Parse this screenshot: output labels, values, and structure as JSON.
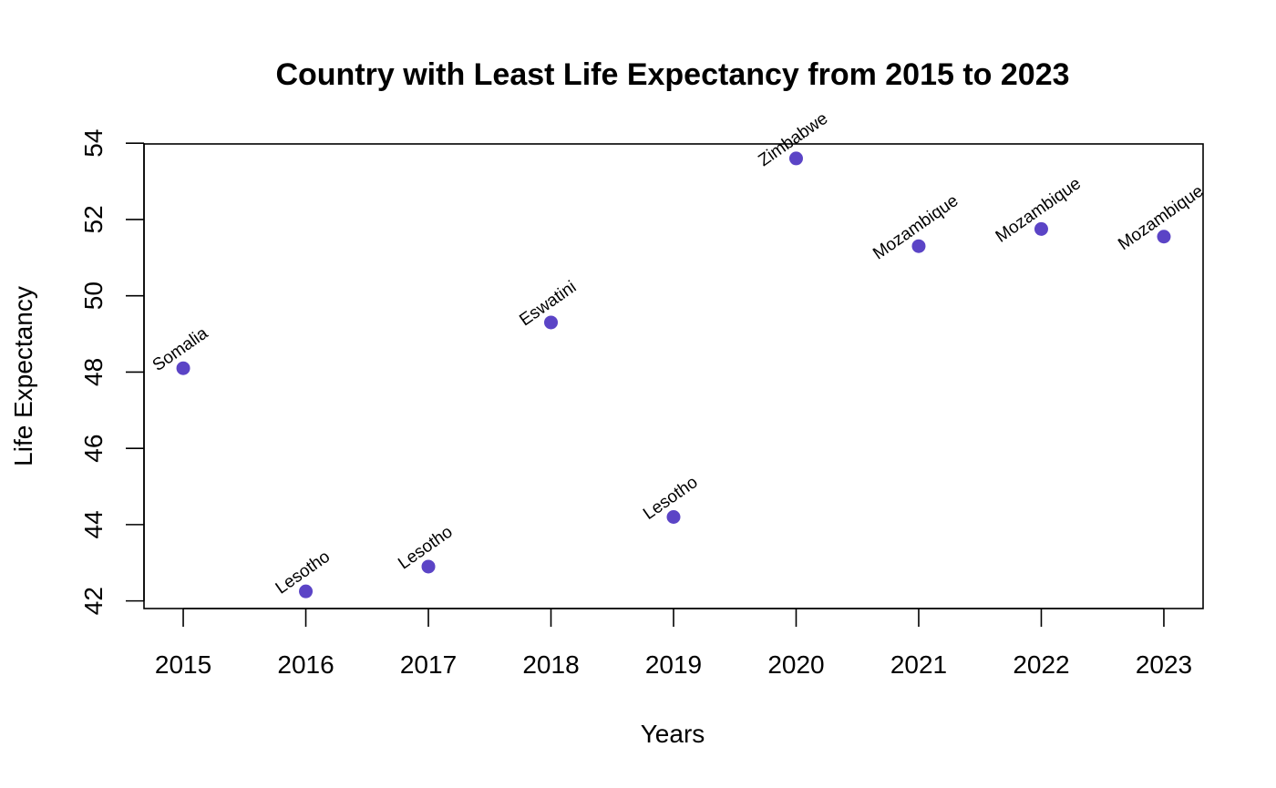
{
  "chart_data": {
    "type": "scatter",
    "title": "Country with Least Life Expectancy from 2015 to 2023",
    "xlabel": "Years",
    "ylabel": "Life Expectancy",
    "x": [
      2015,
      2016,
      2017,
      2018,
      2019,
      2020,
      2021,
      2022,
      2023
    ],
    "y": [
      48.1,
      42.25,
      42.9,
      49.3,
      44.2,
      53.6,
      51.3,
      51.75,
      51.55
    ],
    "point_labels": [
      "Somalia",
      "Lesotho",
      "Lesotho",
      "Eswatini",
      "Lesotho",
      "Zimbabwe",
      "Mozambique",
      "Mozambique",
      "Mozambique"
    ],
    "xticks": [
      "2015",
      "2016",
      "2017",
      "2018",
      "2019",
      "2020",
      "2021",
      "2022",
      "2023"
    ],
    "yticks": [
      "42",
      "44",
      "46",
      "48",
      "50",
      "52",
      "54"
    ],
    "xlim": [
      2014.68,
      2023.32
    ],
    "ylim": [
      41.8,
      53.98
    ],
    "grid": false,
    "point_color": "#5B44C6"
  }
}
